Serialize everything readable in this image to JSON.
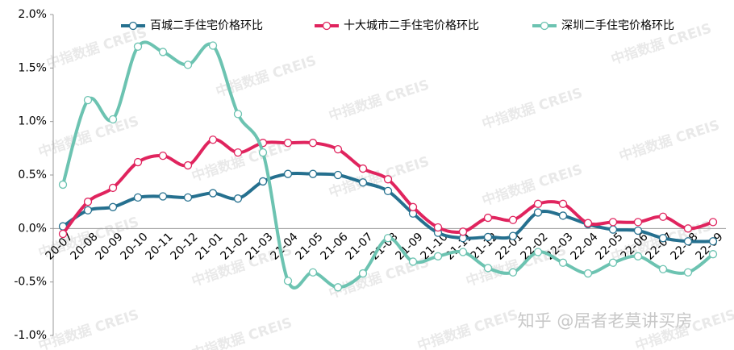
{
  "chart_data": {
    "type": "line",
    "categories": [
      "20-07",
      "20-08",
      "20-09",
      "20-10",
      "20-11",
      "20-12",
      "21-01",
      "21-02",
      "21-03",
      "21-04",
      "21-05",
      "21-06",
      "21-07",
      "21-08",
      "21-09",
      "21-10",
      "21-11",
      "21-12",
      "22-01",
      "22-02",
      "22-03",
      "22-04",
      "22-05",
      "22-06",
      "22-07",
      "22-08",
      "22-09"
    ],
    "series": [
      {
        "name": "百城二手住宅价格环比",
        "color": "#25708f",
        "values": [
          0.02,
          0.17,
          0.2,
          0.29,
          0.3,
          0.29,
          0.33,
          0.28,
          0.44,
          0.51,
          0.51,
          0.5,
          0.43,
          0.35,
          0.14,
          -0.04,
          -0.09,
          -0.08,
          -0.07,
          0.15,
          0.12,
          0.04,
          -0.01,
          -0.02,
          -0.09,
          -0.12,
          -0.12
        ]
      },
      {
        "name": "十大城市二手住宅价格环比",
        "color": "#e0245e",
        "values": [
          -0.05,
          0.25,
          0.38,
          0.62,
          0.68,
          0.59,
          0.83,
          0.71,
          0.8,
          0.8,
          0.8,
          0.74,
          0.56,
          0.46,
          0.2,
          0.01,
          -0.03,
          0.1,
          0.08,
          0.23,
          0.23,
          0.05,
          0.06,
          0.06,
          0.11,
          0.0,
          0.06
        ]
      },
      {
        "name": "深圳二手住宅价格环比",
        "color": "#6cc3b1",
        "values": [
          0.41,
          1.2,
          1.02,
          1.7,
          1.65,
          1.53,
          1.71,
          1.07,
          0.71,
          -0.49,
          -0.41,
          -0.55,
          -0.42,
          -0.09,
          -0.31,
          -0.26,
          -0.22,
          -0.37,
          -0.41,
          -0.22,
          -0.32,
          -0.42,
          -0.32,
          -0.26,
          -0.38,
          -0.41,
          -0.24
        ]
      }
    ],
    "ylim": [
      -1.0,
      2.0
    ],
    "yticks": [
      {
        "value": -1.0,
        "label": "-1.0%"
      },
      {
        "value": -0.5,
        "label": "-0.5%"
      },
      {
        "value": 0,
        "label": "0.0%"
      },
      {
        "value": 0.5,
        "label": "0.5%"
      },
      {
        "value": 1.0,
        "label": "1.0%"
      },
      {
        "value": 1.5,
        "label": "1.5%"
      },
      {
        "value": 2.0,
        "label": "2.0%"
      }
    ],
    "grid": false,
    "legend": "top",
    "watermark": "中指数据 CREIS",
    "credit": "知乎 @居者老莫讲买房"
  }
}
